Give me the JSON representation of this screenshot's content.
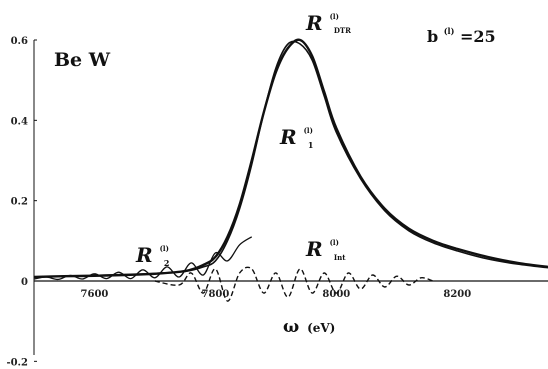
{
  "chart_data": {
    "type": "line",
    "title": "",
    "material_label": "Be  W",
    "parameter_label": {
      "text": "b",
      "sup": "(l)",
      "value": "=25"
    },
    "xlabel": {
      "symbol": "ω",
      "unit": "(eV)"
    },
    "ylabel": "",
    "xlim": [
      7500,
      8350
    ],
    "ylim": [
      -0.2,
      0.65
    ],
    "x_ticks": [
      "7600",
      "7800",
      "8000",
      "8200"
    ],
    "y_ticks": [
      "0.6",
      "0.4",
      "0.2",
      "0",
      "-0.2"
    ],
    "grid": false,
    "legend": "none",
    "series": [
      {
        "key": "DTR",
        "label": {
          "base": "R",
          "sup": "(l)",
          "sub": "DTR"
        },
        "style": "solid",
        "x": [
          7500,
          7550,
          7600,
          7650,
          7700,
          7750,
          7780,
          7800,
          7820,
          7840,
          7860,
          7880,
          7900,
          7920,
          7940,
          7960,
          7980,
          8000,
          8040,
          8080,
          8120,
          8160,
          8200,
          8250,
          8300,
          8350
        ],
        "y": [
          0.01,
          0.012,
          0.013,
          0.015,
          0.018,
          0.025,
          0.04,
          0.06,
          0.11,
          0.19,
          0.3,
          0.42,
          0.52,
          0.58,
          0.6,
          0.56,
          0.47,
          0.38,
          0.26,
          0.18,
          0.13,
          0.1,
          0.08,
          0.06,
          0.045,
          0.035
        ]
      },
      {
        "key": "R1",
        "label": {
          "base": "R",
          "sup": "(l)",
          "sub": "1"
        },
        "style": "solid",
        "x": [
          7500,
          7550,
          7600,
          7650,
          7700,
          7750,
          7780,
          7800,
          7820,
          7840,
          7860,
          7880,
          7900,
          7920,
          7940,
          7960,
          7980,
          8000,
          8040,
          8080,
          8120,
          8160,
          8200,
          8250,
          8300,
          8350
        ],
        "y": [
          0.01,
          0.012,
          0.014,
          0.016,
          0.019,
          0.024,
          0.035,
          0.05,
          0.1,
          0.18,
          0.29,
          0.42,
          0.53,
          0.59,
          0.59,
          0.55,
          0.46,
          0.37,
          0.255,
          0.175,
          0.125,
          0.095,
          0.075,
          0.055,
          0.042,
          0.033
        ]
      },
      {
        "key": "R2",
        "label": {
          "base": "R",
          "sup": "(l)",
          "sub": "2"
        },
        "style": "solid",
        "x": [
          7500,
          7520,
          7540,
          7560,
          7580,
          7600,
          7620,
          7640,
          7660,
          7680,
          7700,
          7720,
          7740,
          7760,
          7780,
          7800,
          7820,
          7840,
          7860
        ],
        "y": [
          0.005,
          0.01,
          0.004,
          0.014,
          0.005,
          0.018,
          0.006,
          0.022,
          0.006,
          0.028,
          0.008,
          0.035,
          0.01,
          0.045,
          0.015,
          0.07,
          0.05,
          0.09,
          0.11
        ]
      },
      {
        "key": "Int",
        "label": {
          "base": "R",
          "sup": "(l)",
          "sub": "Int"
        },
        "style": "dashed",
        "x": [
          7700,
          7740,
          7760,
          7780,
          7800,
          7820,
          7840,
          7860,
          7880,
          7900,
          7920,
          7940,
          7960,
          7980,
          8000,
          8020,
          8040,
          8060,
          8080,
          8100,
          8120,
          8140,
          8160
        ],
        "y": [
          0.0,
          -0.01,
          0.02,
          -0.03,
          0.03,
          -0.05,
          0.02,
          0.03,
          -0.03,
          0.02,
          -0.04,
          0.03,
          -0.03,
          0.02,
          -0.03,
          0.02,
          -0.02,
          0.015,
          -0.015,
          0.012,
          -0.01,
          0.008,
          0.0
        ]
      }
    ]
  }
}
